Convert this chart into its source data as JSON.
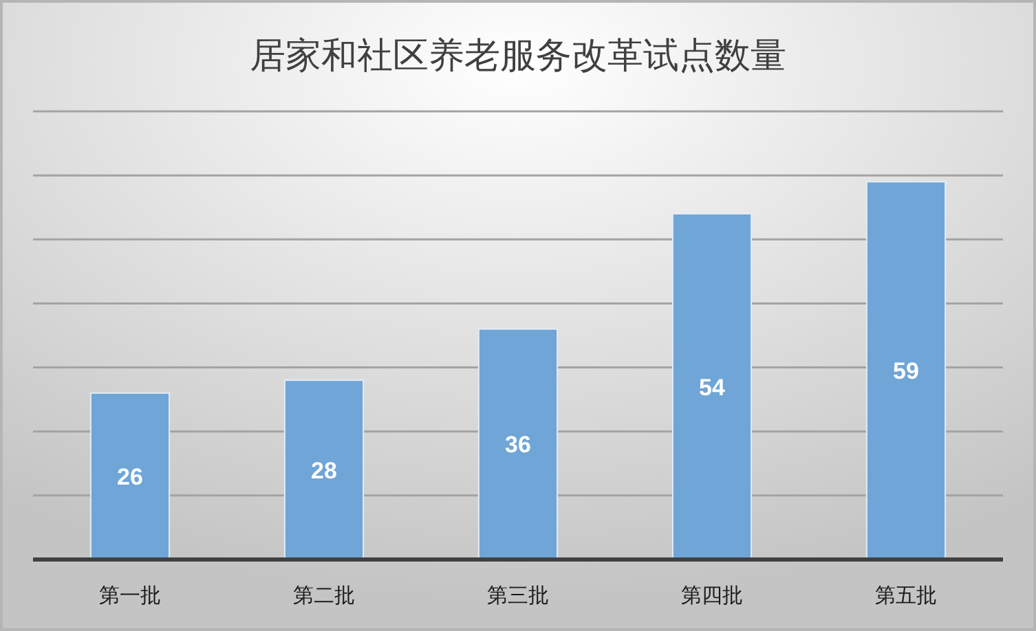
{
  "chart_data": {
    "type": "bar",
    "title": "居家和社区养老服务改革试点数量",
    "categories": [
      "第一批",
      "第二批",
      "第三批",
      "第四批",
      "第五批"
    ],
    "values": [
      26,
      28,
      36,
      54,
      59
    ],
    "color": "#6fa5d7",
    "data_labels": true,
    "ylim": [
      0,
      70
    ],
    "yticks": [
      {
        "value": 0,
        "label": null
      },
      {
        "value": 10,
        "label": null
      },
      {
        "value": 20,
        "label": null
      },
      {
        "value": 30,
        "label": null
      },
      {
        "value": 40,
        "label": null
      },
      {
        "value": 50,
        "label": null
      },
      {
        "value": 60,
        "label": null
      },
      {
        "value": 70,
        "label": null
      }
    ],
    "grid": "y",
    "tick_labels": "x"
  }
}
